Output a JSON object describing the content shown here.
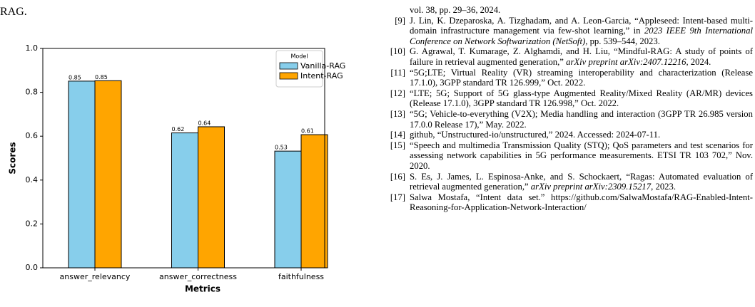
{
  "caption_tail": "RAG.",
  "chart_data": {
    "type": "bar",
    "categories": [
      "answer_relevancy",
      "answer_correctness",
      "faithfulness"
    ],
    "series": [
      {
        "name": "Vanilla-RAG",
        "color": "#87ceeb",
        "values": [
          0.851,
          0.615,
          0.532
        ],
        "value_labels": [
          "0.85",
          "0.62",
          "0.53"
        ]
      },
      {
        "name": "Intent-RAG",
        "color": "#ffa500",
        "values": [
          0.853,
          0.643,
          0.607
        ],
        "value_labels": [
          "0.85",
          "0.64",
          "0.61"
        ]
      }
    ],
    "xlabel": "Metrics",
    "ylabel": "Scores",
    "legend_title": "Model",
    "legend": "upper right",
    "ylim": [
      0,
      1.0
    ],
    "yticks": [
      {
        "value": 0,
        "label": "0.0"
      },
      0.2,
      0.4,
      0.6,
      0.8,
      {
        "value": 1.0,
        "label": "1.0"
      }
    ]
  },
  "references": {
    "continuation": "vol. 38, pp. 29–36, 2024.",
    "items": [
      {
        "label": "[9]",
        "parts": [
          {
            "text": "J. Lin, K. Dzeparoska, A. Tizghadam, and A. Leon-Garcia, “Appleseed: Intent-based multi-domain infrastructure management via few-shot learning,” in "
          },
          {
            "text": "2023 IEEE 9th International Conference on Network Softwarization (NetSoft)",
            "italic": true
          },
          {
            "text": ", pp. 539–544, 2023."
          }
        ]
      },
      {
        "label": "[10]",
        "parts": [
          {
            "text": "G. Agrawal, T. Kumarage, Z. Alghamdi, and H. Liu, “Mindful-RAG: A study of points of failure in retrieval augmented generation,” "
          },
          {
            "text": "arXiv preprint arXiv:2407.12216",
            "italic": true
          },
          {
            "text": ", 2024."
          }
        ]
      },
      {
        "label": "[11]",
        "parts": [
          {
            "text": "“5G;LTE; Virtual Reality (VR) streaming interoperability and characterization (Release 17.1.0), 3GPP standard TR 126.999,” Oct. 2022."
          }
        ]
      },
      {
        "label": "[12]",
        "parts": [
          {
            "text": "“LTE; 5G; Support of 5G glass-type Augmented Reality/Mixed Reality (AR/MR) devices (Release 17.1.0), 3GPP standard TR 126.998,” Oct. 2022."
          }
        ]
      },
      {
        "label": "[13]",
        "parts": [
          {
            "text": "“5G; Vehicle-to-everything (V2X); Media handling and interaction (3GPP TR 26.985 version 17.0.0 Release 17),” May. 2022."
          }
        ]
      },
      {
        "label": "[14]",
        "parts": [
          {
            "text": "github, “Unstructured-io/unstructured,” 2024. Accessed: 2024-07-11."
          }
        ]
      },
      {
        "label": "[15]",
        "parts": [
          {
            "text": "“Speech and multimedia Transmission Quality (STQ); QoS parameters and test scenarios for assessing network capabilities in 5G performance measurements. ETSI TR 103 702,” Nov. 2020."
          }
        ]
      },
      {
        "label": "[16]",
        "parts": [
          {
            "text": "S. Es, J. James, L. Espinosa-Anke, and S. Schockaert, “Ragas: Automated evaluation of retrieval augmented generation,” "
          },
          {
            "text": "arXiv preprint arXiv:2309.15217",
            "italic": true
          },
          {
            "text": ", 2023."
          }
        ]
      },
      {
        "label": "[17]",
        "parts": [
          {
            "text": "Salwa Mostafa, “Intent data set.” https://github.com/SalwaMostafa/RAG-Enabled-Intent-Reasoning-for-Application-Network-Interaction/"
          }
        ]
      }
    ]
  }
}
